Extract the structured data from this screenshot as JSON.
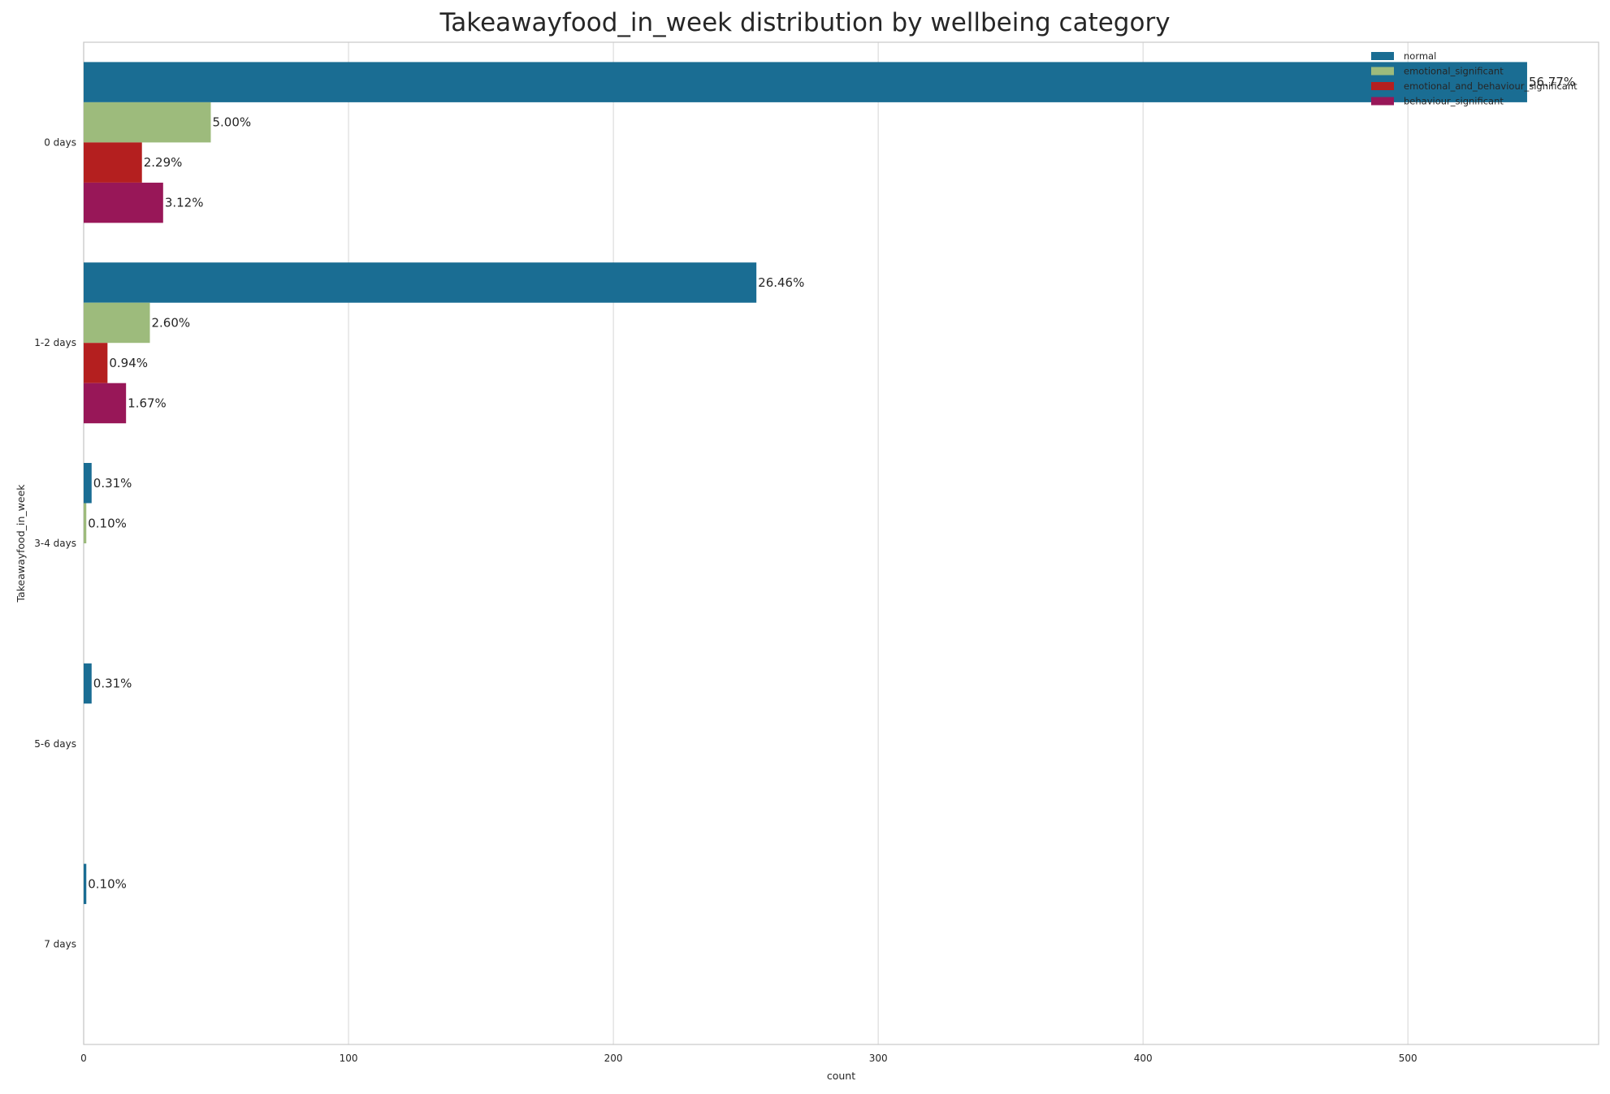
{
  "chart_data": {
    "type": "bar",
    "orientation": "horizontal",
    "title": "Takeawayfood_in_week distribution by wellbeing category",
    "xlabel": "count",
    "ylabel": "Takeawayfood_in_week",
    "xlim": [
      0,
      572
    ],
    "xticks": [
      0,
      100,
      200,
      300,
      400,
      500
    ],
    "grid": true,
    "legend_position": "top-right",
    "categories": [
      "0 days",
      "1-2 days",
      "3-4 days",
      "5-6 days",
      "7 days"
    ],
    "series": [
      {
        "name": "normal",
        "color": "#1a6d93",
        "values": [
          545,
          254,
          3,
          3,
          1
        ],
        "labels": [
          "56.77%",
          "26.46%",
          "0.31%",
          "0.31%",
          "0.10%"
        ]
      },
      {
        "name": "emotional_significant",
        "color": "#9dbb7c",
        "values": [
          48,
          25,
          1,
          0,
          0
        ],
        "labels": [
          "5.00%",
          "2.60%",
          "0.10%",
          "",
          ""
        ]
      },
      {
        "name": "emotional_and_behaviour_significant",
        "color": "#b41f1f",
        "values": [
          22,
          9,
          0,
          0,
          0
        ],
        "labels": [
          "2.29%",
          "0.94%",
          "",
          "",
          ""
        ]
      },
      {
        "name": "behaviour_significant",
        "color": "#981758",
        "values": [
          30,
          16,
          0,
          0,
          0
        ],
        "labels": [
          "3.12%",
          "1.67%",
          "",
          "",
          ""
        ]
      }
    ]
  }
}
